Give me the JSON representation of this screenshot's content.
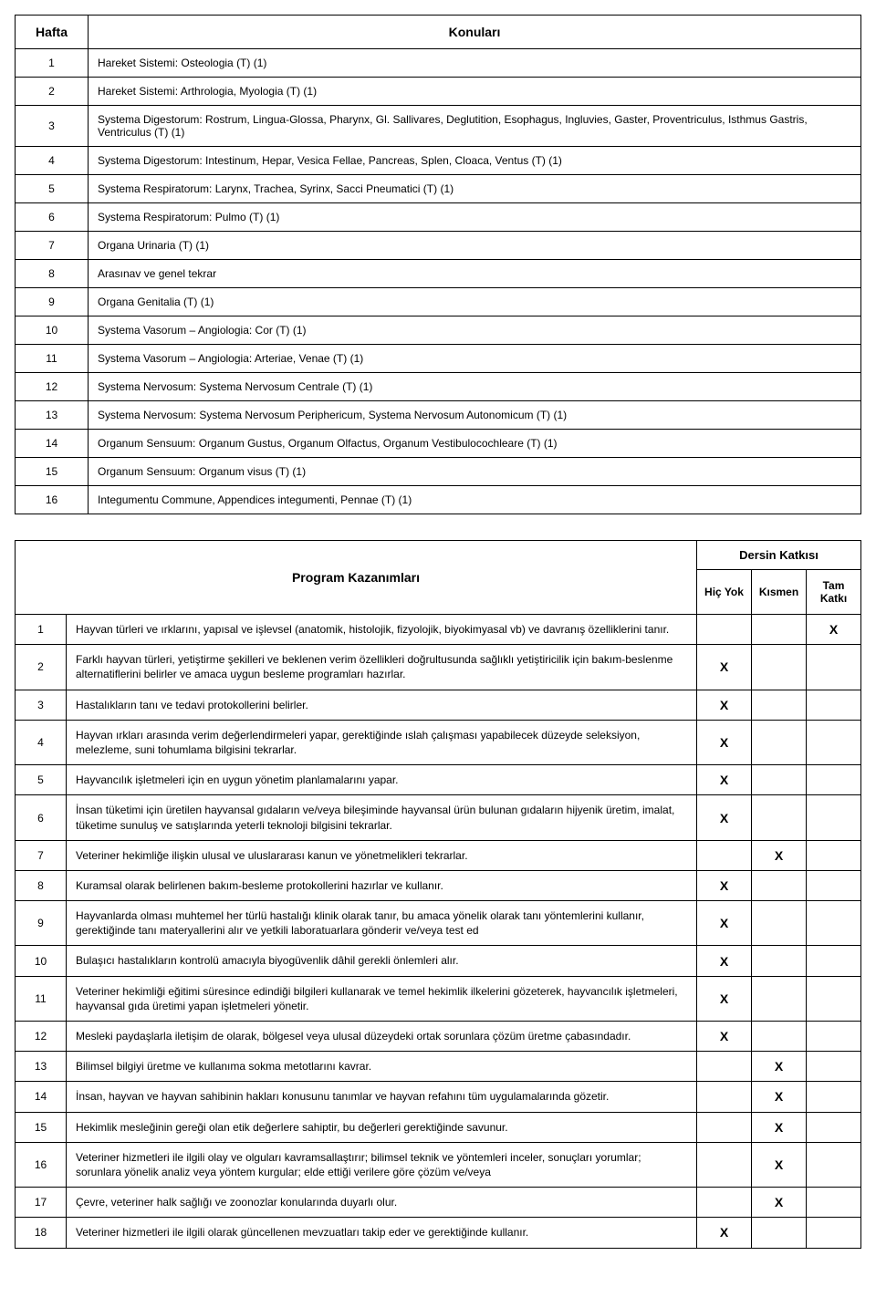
{
  "weeks_table": {
    "header_week": "Hafta",
    "header_topics": "Konuları",
    "rows": [
      {
        "n": "1",
        "t": "Hareket Sistemi: Osteologia (T) (1)"
      },
      {
        "n": "2",
        "t": "Hareket Sistemi: Arthrologia, Myologia (T) (1)"
      },
      {
        "n": "3",
        "t": "Systema Digestorum: Rostrum, Lingua-Glossa, Pharynx, Gl. Sallivares, Deglutition, Esophagus, Ingluvies, Gaster, Proventriculus, Isthmus Gastris, Ventriculus (T) (1)"
      },
      {
        "n": "4",
        "t": "Systema Digestorum: Intestinum, Hepar, Vesica Fellae, Pancreas, Splen, Cloaca, Ventus (T) (1)"
      },
      {
        "n": "5",
        "t": "Systema Respiratorum: Larynx, Trachea, Syrinx, Sacci Pneumatici (T) (1)"
      },
      {
        "n": "6",
        "t": "Systema Respiratorum: Pulmo (T) (1)"
      },
      {
        "n": "7",
        "t": "Organa Urinaria (T) (1)"
      },
      {
        "n": "8",
        "t": "Arasınav ve genel tekrar"
      },
      {
        "n": "9",
        "t": "Organa Genitalia (T) (1)"
      },
      {
        "n": "10",
        "t": "Systema Vasorum – Angiologia: Cor (T) (1)"
      },
      {
        "n": "11",
        "t": "Systema Vasorum – Angiologia: Arteriae, Venae (T) (1)"
      },
      {
        "n": "12",
        "t": "Systema Nervosum: Systema Nervosum Centrale (T) (1)"
      },
      {
        "n": "13",
        "t": "Systema Nervosum: Systema Nervosum Periphericum, Systema Nervosum Autonomicum (T) (1)"
      },
      {
        "n": "14",
        "t": "Organum Sensuum: Organum Gustus, Organum Olfactus, Organum Vestibulocochleare (T) (1)"
      },
      {
        "n": "15",
        "t": "Organum Sensuum: Organum visus (T) (1)"
      },
      {
        "n": "16",
        "t": "Integumentu Commune, Appendices integumenti, Pennae (T) (1)"
      }
    ]
  },
  "outcomes_table": {
    "header_main": "Program Kazanımları",
    "header_contrib": "Dersin Katkısı",
    "header_none": "Hiç Yok",
    "header_partial": "Kısmen",
    "header_full": "Tam Katkı",
    "mark": "X",
    "rows": [
      {
        "n": "1",
        "t": "Hayvan türleri ve ırklarını, yapısal ve işlevsel (anatomik, histolojik, fizyolojik, biyokimyasal vb) ve davranış özelliklerini tanır.",
        "none": "",
        "partial": "",
        "full": "X"
      },
      {
        "n": "2",
        "t": "Farklı hayvan türleri, yetiştirme şekilleri ve beklenen verim özellikleri doğrultusunda sağlıklı yetiştiricilik için bakım-beslenme alternatiflerini belirler ve amaca uygun besleme programları hazırlar.",
        "none": "X",
        "partial": "",
        "full": ""
      },
      {
        "n": "3",
        "t": "Hastalıkların tanı ve tedavi protokollerini belirler.",
        "none": "X",
        "partial": "",
        "full": ""
      },
      {
        "n": "4",
        "t": "Hayvan ırkları arasında verim değerlendirmeleri yapar, gerektiğinde ıslah çalışması yapabilecek düzeyde seleksiyon, melezleme, suni tohumlama bilgisini tekrarlar.",
        "none": "X",
        "partial": "",
        "full": ""
      },
      {
        "n": "5",
        "t": "Hayvancılık işletmeleri için en uygun yönetim planlamalarını yapar.",
        "none": "X",
        "partial": "",
        "full": ""
      },
      {
        "n": "6",
        "t": "İnsan tüketimi için üretilen hayvansal gıdaların ve/veya bileşiminde hayvansal ürün bulunan gıdaların hijyenik üretim, imalat, tüketime sunuluş ve satışlarında yeterli teknoloji bilgisini tekrarlar.",
        "none": "X",
        "partial": "",
        "full": ""
      },
      {
        "n": "7",
        "t": "Veteriner hekimliğe ilişkin ulusal ve uluslararası kanun ve yönetmelikleri tekrarlar.",
        "none": "",
        "partial": "X",
        "full": ""
      },
      {
        "n": "8",
        "t": "Kuramsal olarak belirlenen bakım-besleme protokollerini hazırlar ve kullanır.",
        "none": "X",
        "partial": "",
        "full": ""
      },
      {
        "n": "9",
        "t": "Hayvanlarda olması muhtemel her türlü hastalığı klinik olarak tanır, bu amaca yönelik olarak tanı yöntemlerini kullanır, gerektiğinde tanı materyallerini alır ve yetkili laboratuarlara gönderir ve/veya test ed",
        "none": "X",
        "partial": "",
        "full": ""
      },
      {
        "n": "10",
        "t": "Bulaşıcı hastalıkların kontrolü amacıyla biyogüvenlik dâhil gerekli önlemleri alır.",
        "none": "X",
        "partial": "",
        "full": ""
      },
      {
        "n": "11",
        "t": "Veteriner hekimliği eğitimi süresince edindiği bilgileri kullanarak ve temel hekimlik ilkelerini gözeterek, hayvancılık işletmeleri, hayvansal gıda üretimi yapan işletmeleri yönetir.",
        "none": "X",
        "partial": "",
        "full": ""
      },
      {
        "n": "12",
        "t": "Mesleki paydaşlarla iletişim de olarak, bölgesel veya ulusal düzeydeki ortak sorunlara çözüm üretme çabasındadır.",
        "none": "X",
        "partial": "",
        "full": ""
      },
      {
        "n": "13",
        "t": "Bilimsel bilgiyi üretme ve kullanıma sokma metotlarını kavrar.",
        "none": "",
        "partial": "X",
        "full": ""
      },
      {
        "n": "14",
        "t": "İnsan, hayvan ve hayvan sahibinin hakları konusunu tanımlar ve hayvan refahını tüm uygulamalarında gözetir.",
        "none": "",
        "partial": "X",
        "full": ""
      },
      {
        "n": "15",
        "t": "Hekimlik mesleğinin gereği olan etik değerlere sahiptir, bu değerleri gerektiğinde savunur.",
        "none": "",
        "partial": "X",
        "full": ""
      },
      {
        "n": "16",
        "t": "Veteriner hizmetleri ile ilgili olay ve olguları kavramsallaştırır; bilimsel teknik ve yöntemleri inceler, sonuçları yorumlar; sorunlara yönelik analiz veya yöntem kurgular; elde ettiği verilere göre çözüm ve/veya",
        "none": "",
        "partial": "X",
        "full": ""
      },
      {
        "n": "17",
        "t": "Çevre, veteriner halk sağlığı ve zoonozlar konularında duyarlı olur.",
        "none": "",
        "partial": "X",
        "full": ""
      },
      {
        "n": "18",
        "t": "Veteriner hizmetleri ile ilgili olarak güncellenen mevzuatları takip eder ve gerektiğinde kullanır.",
        "none": "X",
        "partial": "",
        "full": ""
      }
    ]
  }
}
